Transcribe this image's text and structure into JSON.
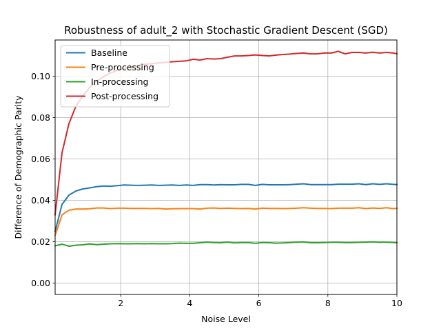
{
  "chart_data": {
    "type": "line",
    "title": "Robustness of adult_2 with Stochastic Gradient Descent (SGD)",
    "xlabel": "Noise Level",
    "ylabel": "Difference of Demographic Parity",
    "xlim": [
      0.1,
      10
    ],
    "ylim": [
      -0.0055,
      0.1175
    ],
    "xticks": [
      2,
      4,
      6,
      8,
      10
    ],
    "xtick_labels": [
      "2",
      "4",
      "6",
      "8",
      "10"
    ],
    "yticks": [
      0.0,
      0.02,
      0.04,
      0.06,
      0.08,
      0.1
    ],
    "ytick_labels": [
      "0.00",
      "0.02",
      "0.04",
      "0.06",
      "0.08",
      "0.10"
    ],
    "grid": true,
    "legend_position": "top-left",
    "x": [
      0.1,
      0.3,
      0.5,
      0.7,
      0.9,
      1.1,
      1.3,
      1.5,
      1.7,
      1.9,
      2.1,
      2.3,
      2.5,
      2.7,
      2.9,
      3.1,
      3.3,
      3.5,
      3.7,
      3.9,
      4.1,
      4.3,
      4.5,
      4.7,
      4.9,
      5.1,
      5.3,
      5.5,
      5.7,
      5.9,
      6.1,
      6.3,
      6.5,
      6.7,
      6.9,
      7.1,
      7.3,
      7.5,
      7.7,
      7.9,
      8.1,
      8.3,
      8.5,
      8.7,
      8.9,
      9.1,
      9.3,
      9.5,
      9.7,
      9.9,
      10.0
    ],
    "series": [
      {
        "name": "Baseline",
        "color": "#1f77b4",
        "values": [
          0.025,
          0.038,
          0.0425,
          0.0445,
          0.0455,
          0.046,
          0.0466,
          0.0469,
          0.0468,
          0.0471,
          0.0474,
          0.0473,
          0.0472,
          0.0473,
          0.0474,
          0.0472,
          0.0473,
          0.0474,
          0.0472,
          0.0474,
          0.0472,
          0.0476,
          0.0476,
          0.0474,
          0.0476,
          0.0475,
          0.0475,
          0.0477,
          0.0477,
          0.0472,
          0.0477,
          0.0475,
          0.0475,
          0.0475,
          0.0476,
          0.0478,
          0.048,
          0.0476,
          0.0476,
          0.0476,
          0.0476,
          0.0478,
          0.0478,
          0.0478,
          0.048,
          0.0476,
          0.048,
          0.0477,
          0.048,
          0.0477,
          0.0476
        ]
      },
      {
        "name": "Pre-processing",
        "color": "#ff7f0e",
        "values": [
          0.023,
          0.033,
          0.0352,
          0.0358,
          0.0358,
          0.0359,
          0.0363,
          0.0363,
          0.036,
          0.0362,
          0.0362,
          0.0361,
          0.0361,
          0.0361,
          0.036,
          0.0361,
          0.0358,
          0.0359,
          0.036,
          0.036,
          0.036,
          0.0358,
          0.0362,
          0.0363,
          0.0361,
          0.0362,
          0.0361,
          0.036,
          0.0361,
          0.0358,
          0.0362,
          0.0361,
          0.0361,
          0.036,
          0.0361,
          0.0362,
          0.0364,
          0.0362,
          0.0361,
          0.0361,
          0.036,
          0.0362,
          0.0362,
          0.0362,
          0.0364,
          0.036,
          0.0363,
          0.0361,
          0.0364,
          0.036,
          0.0361
        ]
      },
      {
        "name": "In-processing",
        "color": "#2ca02c",
        "values": [
          0.018,
          0.0188,
          0.0178,
          0.0183,
          0.0185,
          0.0189,
          0.0186,
          0.0188,
          0.019,
          0.0191,
          0.019,
          0.019,
          0.0191,
          0.019,
          0.0191,
          0.019,
          0.019,
          0.0191,
          0.0193,
          0.0192,
          0.0192,
          0.0195,
          0.0198,
          0.0196,
          0.0195,
          0.0198,
          0.0194,
          0.0196,
          0.0196,
          0.0192,
          0.0196,
          0.0195,
          0.0193,
          0.0194,
          0.0196,
          0.0198,
          0.0199,
          0.0195,
          0.0195,
          0.0196,
          0.0197,
          0.0197,
          0.0196,
          0.0196,
          0.0197,
          0.0198,
          0.0199,
          0.0197,
          0.0198,
          0.0196,
          0.0195
        ]
      },
      {
        "name": "Post-processing",
        "color": "#d62728",
        "values": [
          0.033,
          0.063,
          0.077,
          0.0855,
          0.0905,
          0.0945,
          0.0975,
          0.0998,
          0.1015,
          0.1028,
          0.1038,
          0.1045,
          0.1052,
          0.1058,
          0.106,
          0.1064,
          0.1067,
          0.107,
          0.1072,
          0.1074,
          0.1082,
          0.1078,
          0.1085,
          0.1083,
          0.1085,
          0.1092,
          0.1098,
          0.1098,
          0.11,
          0.1103,
          0.11,
          0.1098,
          0.1102,
          0.1105,
          0.1107,
          0.111,
          0.1112,
          0.1108,
          0.1108,
          0.1112,
          0.1112,
          0.112,
          0.1108,
          0.1115,
          0.1115,
          0.1112,
          0.1116,
          0.1112,
          0.1115,
          0.1112,
          0.1108
        ]
      }
    ]
  }
}
